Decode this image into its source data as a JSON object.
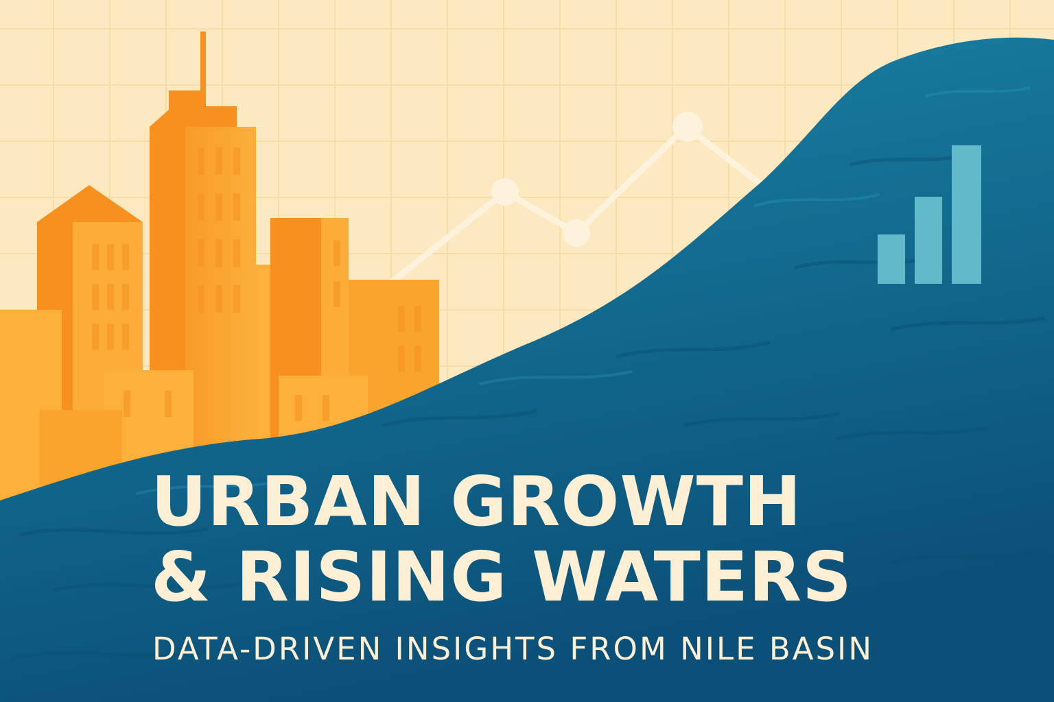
{
  "headline": {
    "line1": "URBAN GROWTH",
    "line2": "& RISING WATERS"
  },
  "subtitle": "DATA-DRIVEN INSIGHTS FROM NILE BASIN",
  "colors": {
    "background": "#fce9bf",
    "grid": "#f6dcab",
    "building_light": "#fbb03a",
    "building_dark": "#f7901e",
    "water_light": "#1a86a8",
    "water_dark": "#0b5a82",
    "line_and_text": "#fcefd4",
    "bar_icon": "#62b9c8"
  },
  "icons": [
    "city-skyline-illustration",
    "trend-line-chart-illustration",
    "bar-chart-icon",
    "wave-illustration"
  ]
}
